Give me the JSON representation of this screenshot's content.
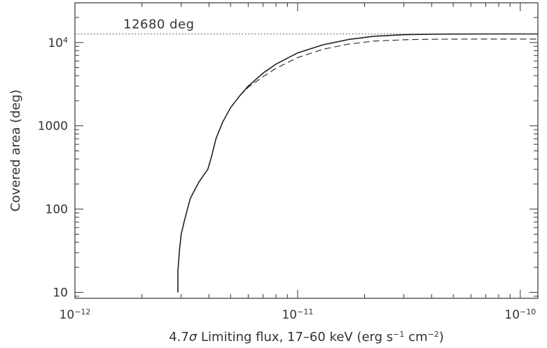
{
  "chart_data": {
    "type": "line",
    "title": "",
    "xlabel": "4.7σ Limiting flux, 17–60 keV (erg s⁻¹ cm⁻²)",
    "xlabel_parts": {
      "prefix": "4.7",
      "sigma": "σ",
      "main": " Limiting flux, 17–60 keV (erg s",
      "sup1": "−1",
      "mid": " cm",
      "sup2": "−2",
      "suffix": ")"
    },
    "ylabel": "Covered area (deg)",
    "xscale": "log",
    "yscale": "log",
    "xlim": [
      1e-12,
      1.2e-10
    ],
    "ylim": [
      8.5,
      30000
    ],
    "grid": false,
    "x_ticks": [
      {
        "value": 1e-12,
        "base": "10",
        "exp": "−12"
      },
      {
        "value": 1e-11,
        "base": "10",
        "exp": "−11"
      },
      {
        "value": 1e-10,
        "base": "10",
        "exp": "−10"
      }
    ],
    "y_ticks": [
      {
        "value": 10,
        "label": "10",
        "base": "",
        "exp": ""
      },
      {
        "value": 100,
        "label": "100",
        "base": "",
        "exp": ""
      },
      {
        "value": 1000,
        "label": "1000",
        "base": "",
        "exp": ""
      },
      {
        "value": 10000,
        "label": "",
        "base": "10",
        "exp": "4"
      }
    ],
    "annotation": {
      "text": "12680 deg",
      "x": 1.65e-12,
      "y": 12680
    },
    "reference_line": {
      "y": 12680,
      "style": "dotted"
    },
    "series": [
      {
        "style": "solid",
        "x": [
          2.9e-12,
          2.9e-12,
          2.95e-12,
          3e-12,
          3.1e-12,
          3.2e-12,
          3.3e-12,
          3.45e-12,
          3.6e-12,
          3.8e-12,
          3.95e-12,
          4.1e-12,
          4.3e-12,
          4.6e-12,
          5e-12,
          5.5e-12,
          6e-12,
          7e-12,
          8e-12,
          1e-11,
          1.3e-11,
          1.7e-11,
          2.2e-11,
          3e-11,
          4e-11,
          6e-11,
          8e-11,
          1.2e-10
        ],
        "y": [
          10,
          18,
          33,
          50,
          72,
          100,
          135,
          170,
          210,
          260,
          300,
          420,
          700,
          1100,
          1650,
          2300,
          3000,
          4300,
          5500,
          7500,
          9400,
          10900,
          11900,
          12400,
          12600,
          12650,
          12670,
          12680
        ]
      },
      {
        "style": "dashed",
        "x": [
          5.5e-12,
          6e-12,
          7e-12,
          8e-12,
          1e-11,
          1.3e-11,
          1.7e-11,
          2.2e-11,
          3e-11,
          4e-11,
          6e-11,
          8e-11,
          1.2e-10
        ],
        "y": [
          2300,
          2900,
          3900,
          4900,
          6600,
          8300,
          9600,
          10400,
          10800,
          10950,
          11000,
          11000,
          11000
        ]
      }
    ]
  }
}
